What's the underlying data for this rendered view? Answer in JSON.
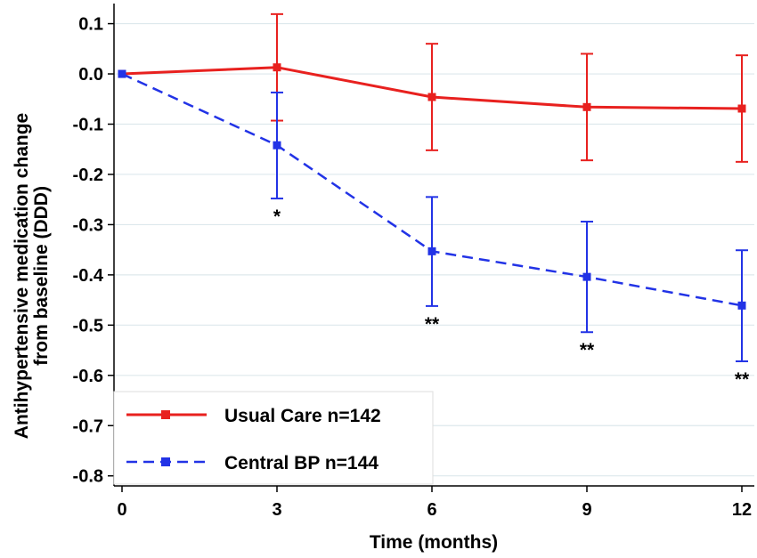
{
  "chart_data": {
    "type": "line",
    "xlabel": "Time (months)",
    "ylabel_lines": [
      "Antihypertensive medication change",
      "from baseline (DDD)"
    ],
    "x": [
      0,
      3,
      6,
      9,
      12
    ],
    "xticks": [
      "0",
      "3",
      "6",
      "9",
      "12"
    ],
    "xlim": [
      0,
      12
    ],
    "ylim": [
      -0.82,
      0.14
    ],
    "yticks": [
      "0.1",
      "0.0",
      "-0.1",
      "-0.2",
      "-0.3",
      "-0.4",
      "-0.5",
      "-0.6",
      "-0.7",
      "-0.8"
    ],
    "ytick_values": [
      0.1,
      0.0,
      -0.1,
      -0.2,
      -0.3,
      -0.4,
      -0.5,
      -0.6,
      -0.7,
      -0.8
    ],
    "grid": "horizontal",
    "legend_position": "bottom-left",
    "series": [
      {
        "name": "Usual Care n=142",
        "color": "#e8211f",
        "line_style": "solid",
        "values": [
          0.0,
          0.013,
          -0.046,
          -0.066,
          -0.069
        ],
        "err_low": [
          null,
          -0.093,
          -0.152,
          -0.172,
          -0.175
        ],
        "err_high": [
          null,
          0.119,
          0.06,
          0.04,
          0.037
        ]
      },
      {
        "name": "Central BP n=144",
        "color": "#2233e6",
        "line_style": "dashed",
        "values": [
          0.0,
          -0.142,
          -0.353,
          -0.404,
          -0.461
        ],
        "err_low": [
          null,
          -0.248,
          -0.462,
          -0.514,
          -0.572
        ],
        "err_high": [
          null,
          -0.037,
          -0.245,
          -0.294,
          -0.351
        ]
      }
    ],
    "annotations": [
      {
        "x": 3,
        "text": "*"
      },
      {
        "x": 6,
        "text": "**"
      },
      {
        "x": 9,
        "text": "**"
      },
      {
        "x": 12,
        "text": "**"
      }
    ]
  }
}
